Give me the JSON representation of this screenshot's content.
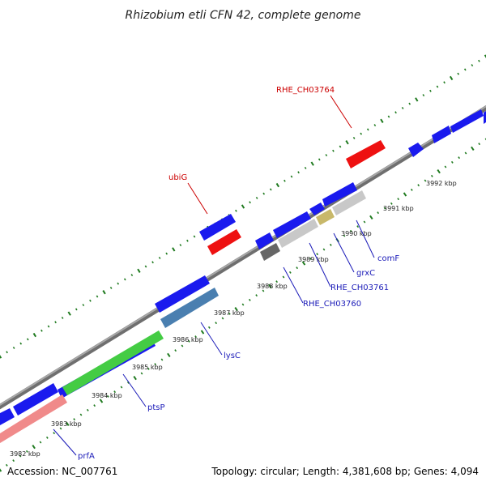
{
  "header": {
    "title": "Rhizobium etli CFN 42, complete genome"
  },
  "footer": {
    "accession": "Accession: NC_007761",
    "summary": "Topology: circular; Length: 4,381,608 bp; Genes: 4,094"
  },
  "scale": {
    "ticks": [
      "3982 kbp",
      "3983 kbp",
      "3984 kbp",
      "3985 kbp",
      "3986 kbp",
      "3987 kbp",
      "3988 kbp",
      "3989 kbp",
      "3990 kbp",
      "3991 kbp",
      "3992 kbp"
    ]
  },
  "colors": {
    "backbone": "#8a8a8a",
    "forward_cds": "#1a1aee",
    "reverse_cds": "#ee1111",
    "tick_marks": "#1f7a1f",
    "label_forward": "#1a1ab8",
    "label_reverse": "#cc0000",
    "prfA": "#f08a8a",
    "ptsP": "#44cc44",
    "lysC": "#4a7fb0",
    "grxC": "#c8b86a",
    "RHE_CH03760": "#666666",
    "RHE_CH03761": "#c8c8c8"
  },
  "gene_labels": {
    "forward": [
      "RHE_CH03764",
      "ubiG"
    ],
    "reverse": [
      "comF",
      "grxC",
      "RHE_CH03761",
      "RHE_CH03760",
      "lysC",
      "ptsP",
      "prfA"
    ]
  }
}
